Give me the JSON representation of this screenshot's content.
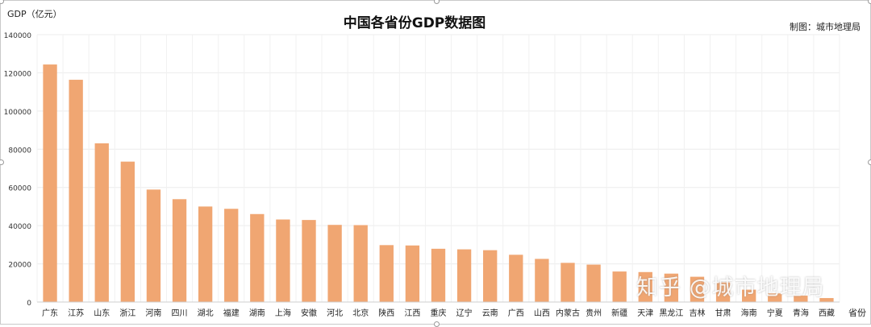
{
  "chart_data": {
    "type": "bar",
    "title": "中国各省份GDP数据图",
    "ylabel": "GDP（亿元）",
    "xlabel": "省份",
    "credit": "制图：城市地理局",
    "ylim": [
      0,
      140000
    ],
    "yticks": [
      0,
      20000,
      40000,
      60000,
      80000,
      100000,
      120000,
      140000
    ],
    "grid": true,
    "categories": [
      "广东",
      "江苏",
      "山东",
      "浙江",
      "河南",
      "四川",
      "湖北",
      "福建",
      "湖南",
      "上海",
      "安徽",
      "河北",
      "北京",
      "陕西",
      "江西",
      "重庆",
      "辽宁",
      "云南",
      "广西",
      "山西",
      "内蒙古",
      "贵州",
      "新疆",
      "天津",
      "黑龙江",
      "吉林",
      "甘肃",
      "海南",
      "宁夏",
      "青海",
      "西藏"
    ],
    "series": [
      {
        "values": [
          124370,
          116364,
          83096,
          73516,
          58887,
          53851,
          50013,
          48810,
          46063,
          43215,
          42959,
          40391,
          40270,
          29801,
          29620,
          27894,
          27584,
          27147,
          24741,
          22590,
          20514,
          19586,
          15984,
          15695,
          14879,
          13236,
          10244,
          6475,
          4522,
          3347,
          2080
        ],
        "color": "#f0a672"
      }
    ]
  },
  "watermark": "知乎 @城市地理局"
}
